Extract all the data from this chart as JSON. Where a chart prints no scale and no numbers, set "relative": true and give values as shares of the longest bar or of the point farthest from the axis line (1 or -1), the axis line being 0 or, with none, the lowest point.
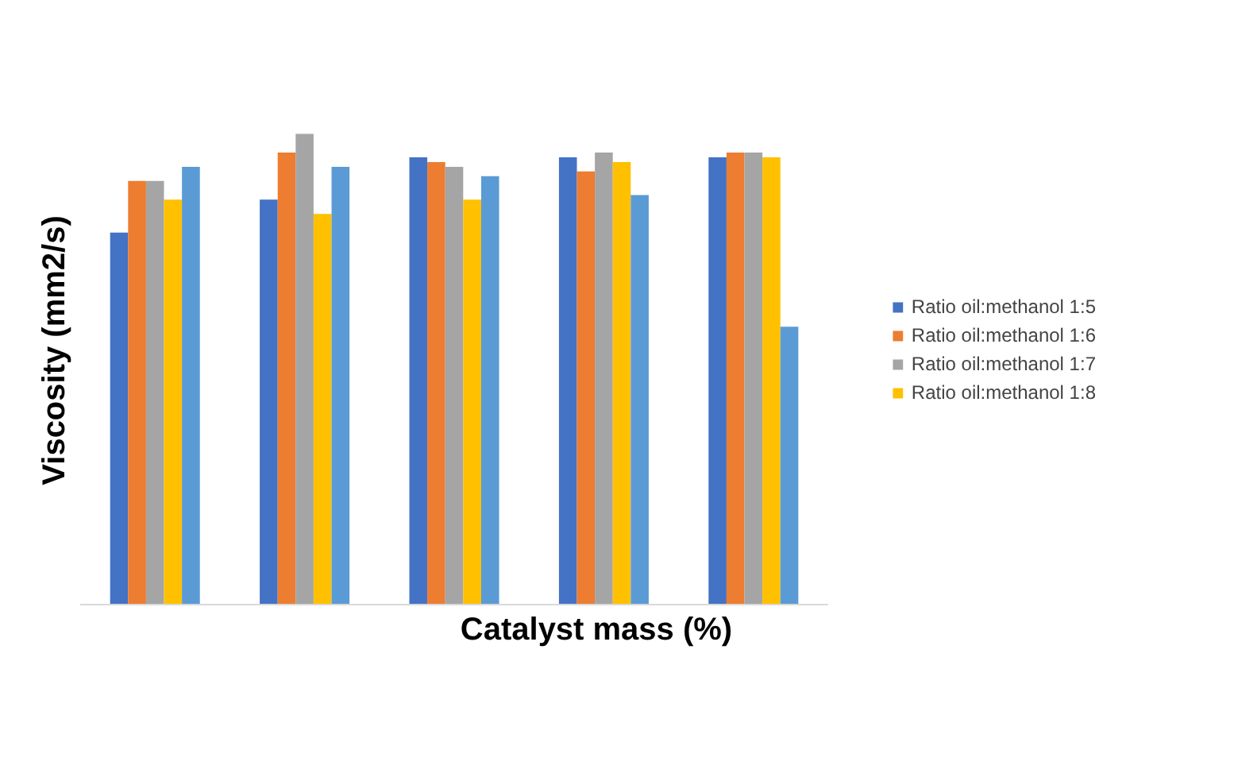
{
  "chart_data": {
    "type": "bar",
    "relative": true,
    "xlabel": "Catalyst mass (%)",
    "ylabel": "Viscosity (mm2/s)",
    "categories": [
      null,
      null,
      null,
      null,
      null
    ],
    "legend": "right",
    "series": [
      {
        "name": "Ratio oil:methanol 1:5",
        "color": "#4472c4",
        "values": [
          0.79,
          0.86,
          0.95,
          0.95,
          0.95
        ]
      },
      {
        "name": "Ratio oil:methanol 1:6",
        "color": "#ed7d31",
        "values": [
          0.9,
          0.96,
          0.94,
          0.92,
          0.96
        ]
      },
      {
        "name": "Ratio oil:methanol 1:7",
        "color": "#a5a5a5",
        "values": [
          0.9,
          1,
          0.93,
          0.96,
          0.96
        ]
      },
      {
        "name": "Ratio oil:methanol 1:8",
        "color": "#ffc000",
        "values": [
          0.86,
          0.83,
          0.86,
          0.94,
          0.95
        ]
      },
      {
        "color": "#5b9bd5",
        "values": [
          0.93,
          0.93,
          0.91,
          0.87,
          0.59
        ]
      }
    ]
  }
}
